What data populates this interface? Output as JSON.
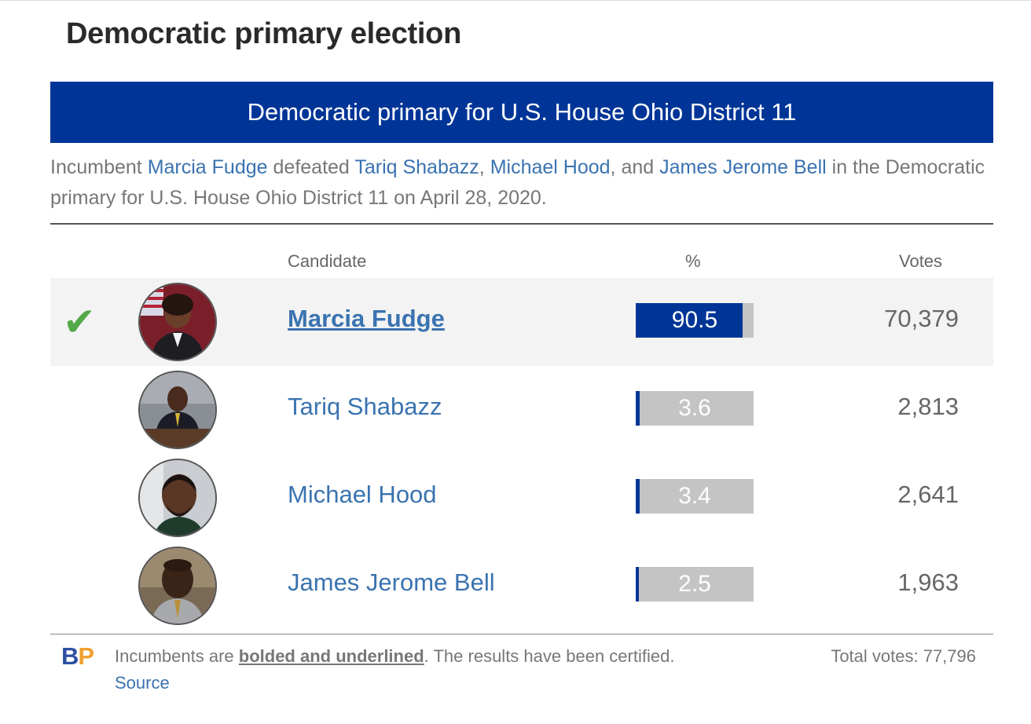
{
  "page_title": "Democratic primary election",
  "race_header": "Democratic primary for U.S. House Ohio District 11",
  "summary": {
    "prefix": "Incumbent",
    "incumbent": "Marcia Fudge",
    "verb": "defeated",
    "opponent1": "Tariq Shabazz",
    "sep1": ",",
    "opponent2": "Michael Hood",
    "sep2": ", and",
    "opponent3": "James Jerome Bell",
    "suffix": "in the Democratic primary for U.S. House Ohio District 11 on April 28, 2020."
  },
  "columns": {
    "candidate": "Candidate",
    "percent": "%",
    "votes": "Votes"
  },
  "candidates": [
    {
      "name": "Marcia Fudge",
      "percent": "90.5",
      "percent_value": 90.5,
      "votes": "70,379",
      "winner": true,
      "incumbent": true,
      "avatar": "candidate-photo-marcia-fudge"
    },
    {
      "name": "Tariq Shabazz",
      "percent": "3.6",
      "percent_value": 3.6,
      "votes": "2,813",
      "winner": false,
      "incumbent": false,
      "avatar": "candidate-photo-tariq-shabazz"
    },
    {
      "name": "Michael Hood",
      "percent": "3.4",
      "percent_value": 3.4,
      "votes": "2,641",
      "winner": false,
      "incumbent": false,
      "avatar": "candidate-photo-michael-hood"
    },
    {
      "name": "James Jerome Bell",
      "percent": "2.5",
      "percent_value": 2.5,
      "votes": "1,963",
      "winner": false,
      "incumbent": false,
      "avatar": "candidate-photo-james-jerome-bell"
    }
  ],
  "winner_icon": "check-mark-icon",
  "footer": {
    "logo_b": "B",
    "logo_p": "P",
    "note_prefix": "Incumbents are",
    "note_emph": "bolded and underlined",
    "note_suffix": ". The results have been certified.",
    "source_label": "Source",
    "total_votes": "Total votes: 77,796"
  },
  "colors": {
    "header_bg": "#003597",
    "bar_fill": "#003597",
    "bar_track": "#c4c4c4",
    "link": "#3a73b0",
    "check": "#55a84a",
    "winner_row_bg": "#f3f3f3",
    "logo_b": "#2c4fa3",
    "logo_p": "#f0a030"
  }
}
